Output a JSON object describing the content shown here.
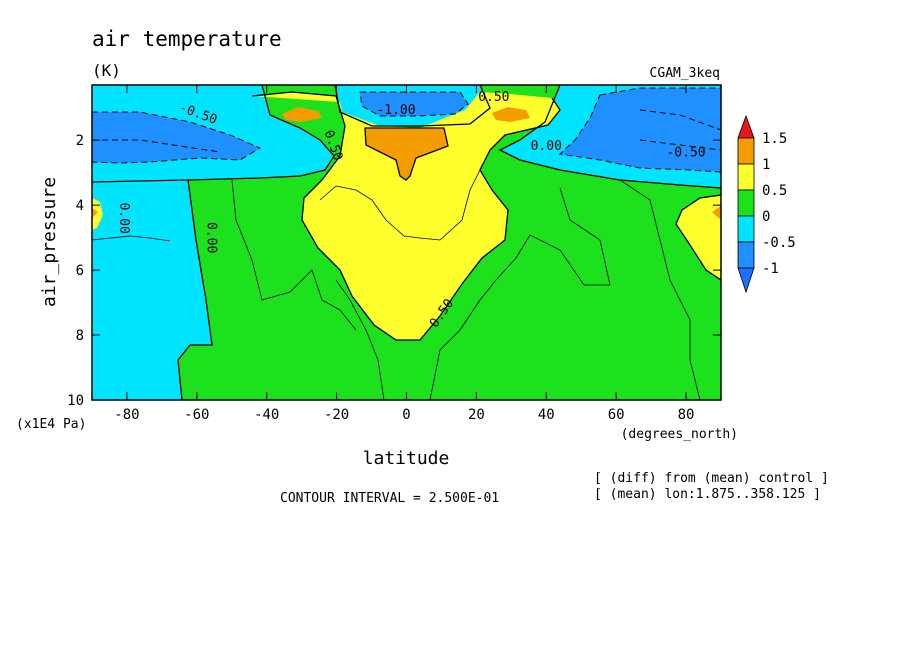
{
  "chart_data": {
    "type": "heatmap",
    "title": "air temperature",
    "units": "(K)",
    "dataset_label": "CGAM_3keq",
    "xlabel": "latitude",
    "x_units": "(degrees_north)",
    "ylabel": "air_pressure",
    "y_units": "(x1E4 Pa)",
    "xlim": [
      -90,
      90
    ],
    "ylim": [
      10,
      0.3
    ],
    "x_ticks": [
      "-80",
      "-60",
      "-40",
      "-20",
      "0",
      "20",
      "40",
      "60",
      "80"
    ],
    "x_tick_values": [
      -80,
      -60,
      -40,
      -20,
      0,
      20,
      40,
      60,
      80
    ],
    "y_ticks": [
      "2",
      "4",
      "6",
      "8",
      "10"
    ],
    "y_tick_values": [
      2,
      4,
      6,
      8,
      10
    ],
    "contour_interval_text": "CONTOUR INTERVAL = 2.500E-01",
    "contour_labels": [
      {
        "text": "-0.50",
        "lat": -60,
        "p": 1.3
      },
      {
        "text": "0.50",
        "lat": -22,
        "p": 2.2
      },
      {
        "text": "-1.00",
        "lat": -3,
        "p": 1.2
      },
      {
        "text": "0.50",
        "lat": 25,
        "p": 0.8
      },
      {
        "text": "0.00",
        "lat": 40,
        "p": 2.3
      },
      {
        "text": "-0.50",
        "lat": 80,
        "p": 2.5
      },
      {
        "text": "0.00",
        "lat": -82,
        "p": 4.4
      },
      {
        "text": "0.00",
        "lat": -57,
        "p": 5.0
      },
      {
        "text": "0.50",
        "lat": 11,
        "p": 7.4
      }
    ],
    "colorbar": {
      "levels": [
        "1.5",
        "1",
        "0.5",
        "0",
        "-0.5",
        "-1"
      ],
      "colors": [
        "#e0e0e0",
        "#f59c00",
        "#ffff2e",
        "#1ee11e",
        "#00e5ff",
        "#1e90ff",
        "#e81818",
        "#1e70ff"
      ]
    },
    "notes": [
      "[ (diff) from (mean) control ]",
      "[ (mean) lon:1.875..358.125 ]"
    ]
  }
}
